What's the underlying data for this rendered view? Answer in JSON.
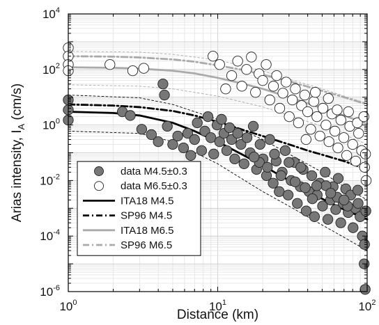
{
  "chart_data": {
    "type": "scatter",
    "x_scale": "log",
    "y_scale": "log",
    "xlim": [
      1,
      100
    ],
    "ylim": [
      1e-06,
      10000
    ],
    "xlabel": "Distance (km)",
    "ylabel": "Arias intensity, I",
    "ylabel_subscript": "A",
    "ylabel_unit": " (cm/s)",
    "grid": "on (major and minor)",
    "legend_position": "bottom-left",
    "x_ticks": [
      {
        "value": 1,
        "base": "10",
        "exp": "0"
      },
      {
        "value": 10,
        "base": "10",
        "exp": "1"
      },
      {
        "value": 100,
        "base": "10",
        "exp": "2"
      }
    ],
    "y_ticks": [
      {
        "value": 1e-06,
        "base": "10",
        "exp": "-6"
      },
      {
        "value": 0.0001,
        "base": "10",
        "exp": "-4"
      },
      {
        "value": 0.01,
        "base": "10",
        "exp": "-2"
      },
      {
        "value": 1,
        "base": "10",
        "exp": "0"
      },
      {
        "value": 100,
        "base": "10",
        "exp": "2"
      },
      {
        "value": 10000,
        "base": "10",
        "exp": "4"
      }
    ],
    "legend": [
      {
        "label": "data M4.5±0.3",
        "kind": "marker",
        "fill": "#777777",
        "stroke": "#222222"
      },
      {
        "label": "data M6.5±0.3",
        "kind": "marker",
        "fill": "#ffffff",
        "stroke": "#222222"
      },
      {
        "label": "ITA18 M4.5",
        "kind": "line",
        "color": "#000000",
        "dash": "solid"
      },
      {
        "label": "SP96 M4.5",
        "kind": "line",
        "color": "#000000",
        "dash": "dashdot"
      },
      {
        "label": "ITA18 M6.5",
        "kind": "line",
        "color": "#aaaaaa",
        "dash": "solid"
      },
      {
        "label": "SP96 M6.5",
        "kind": "line",
        "color": "#aaaaaa",
        "dash": "dashdot"
      }
    ],
    "series": [
      {
        "name": "data M4.5±0.3",
        "type": "scatter",
        "fill": "#777777",
        "stroke": "#222222",
        "points": [
          [
            1.0,
            8.0
          ],
          [
            1.0,
            3.5
          ],
          [
            1.0,
            1.5
          ],
          [
            2.3,
            3.0
          ],
          [
            2.6,
            2.2
          ],
          [
            3.1,
            0.7
          ],
          [
            3.6,
            0.45
          ],
          [
            4.0,
            0.25
          ],
          [
            4.3,
            30
          ],
          [
            4.4,
            12
          ],
          [
            4.6,
            0.9
          ],
          [
            5.0,
            0.2
          ],
          [
            5.4,
            0.4
          ],
          [
            5.9,
            0.15
          ],
          [
            6.3,
            0.5
          ],
          [
            6.6,
            0.08
          ],
          [
            7.0,
            0.3
          ],
          [
            7.3,
            1.2
          ],
          [
            7.8,
            0.12
          ],
          [
            8.2,
            0.6
          ],
          [
            8.6,
            2.0
          ],
          [
            9.0,
            0.35
          ],
          [
            9.4,
            0.09
          ],
          [
            9.9,
            1.0
          ],
          [
            10.3,
            0.25
          ],
          [
            10.6,
            1.6
          ],
          [
            11.0,
            0.5
          ],
          [
            11.5,
            0.12
          ],
          [
            12.0,
            0.8
          ],
          [
            12.4,
            0.3
          ],
          [
            13.0,
            0.06
          ],
          [
            13.6,
            0.5
          ],
          [
            14.3,
            0.2
          ],
          [
            15.0,
            0.04
          ],
          [
            15.7,
            0.35
          ],
          [
            16.5,
            0.1
          ],
          [
            17.3,
            0.9
          ],
          [
            18.2,
            0.025
          ],
          [
            19.2,
            0.2
          ],
          [
            20.1,
            0.06
          ],
          [
            21.2,
            0.015
          ],
          [
            22.3,
            0.3
          ],
          [
            23.5,
            0.008
          ],
          [
            24.6,
            0.05
          ],
          [
            25.8,
            0.004
          ],
          [
            27.0,
            0.02
          ],
          [
            28.3,
            0.12
          ],
          [
            29.6,
            0.003
          ],
          [
            31.0,
            0.01
          ],
          [
            32.6,
            0.045
          ],
          [
            34.1,
            0.0015
          ],
          [
            35.7,
            0.006
          ],
          [
            37.3,
            0.025
          ],
          [
            39.1,
            0.0008
          ],
          [
            40.8,
            0.004
          ],
          [
            42.6,
            0.015
          ],
          [
            44.4,
            0.0005
          ],
          [
            46.3,
            0.003
          ],
          [
            48.2,
            0.008
          ],
          [
            50.3,
            0.0012
          ],
          [
            52.4,
            0.02
          ],
          [
            54.6,
            0.0004
          ],
          [
            56.9,
            0.002
          ],
          [
            59.2,
            0.006
          ],
          [
            61.6,
            0.0009
          ],
          [
            64.0,
            0.012
          ],
          [
            66.6,
            0.0003
          ],
          [
            69.2,
            0.0015
          ],
          [
            71.9,
            0.005
          ],
          [
            74.7,
            0.0007
          ],
          [
            77.6,
            0.003
          ],
          [
            80.5,
            0.0002
          ],
          [
            83.5,
            0.001
          ],
          [
            86.6,
            0.0045
          ],
          [
            89.7,
            0.0005
          ],
          [
            92.9,
            0.0001
          ],
          [
            95.5,
            1e-05
          ],
          [
            97.0,
            1.2e-06
          ],
          [
            96.0,
            5e-05
          ],
          [
            98.0,
            0.0008
          ],
          [
            19.0,
            0.045
          ],
          [
            24.0,
            0.09
          ],
          [
            30.0,
            0.045
          ],
          [
            36.0,
            0.03
          ],
          [
            43.0,
            0.0022
          ],
          [
            53.0,
            0.0065
          ],
          [
            63.0,
            0.0025
          ],
          [
            74.0,
            0.0012
          ],
          [
            87.0,
            0.0015
          ],
          [
            57.0,
            0.0035
          ],
          [
            17.5,
            0.07
          ],
          [
            21.5,
            0.03
          ],
          [
            26.5,
            0.015
          ],
          [
            33.0,
            0.009
          ],
          [
            38.5,
            0.0055
          ],
          [
            46.0,
            0.0065
          ],
          [
            70.0,
            0.002
          ]
        ]
      },
      {
        "name": "data M6.5±0.3",
        "type": "scatter",
        "fill": "#ffffff",
        "stroke": "#222222",
        "points": [
          [
            1.0,
            600
          ],
          [
            1.0,
            300
          ],
          [
            1.0,
            150
          ],
          [
            1.0,
            90
          ],
          [
            1.9,
            150
          ],
          [
            2.7,
            90
          ],
          [
            3.2,
            110
          ],
          [
            9.3,
            300
          ],
          [
            10.3,
            150
          ],
          [
            11.3,
            20
          ],
          [
            12.4,
            60
          ],
          [
            13.6,
            200
          ],
          [
            14.5,
            25
          ],
          [
            15.6,
            100
          ],
          [
            16.8,
            280
          ],
          [
            17.9,
            15
          ],
          [
            18.9,
            70
          ],
          [
            20.0,
            40
          ],
          [
            21.1,
            150
          ],
          [
            22.3,
            8
          ],
          [
            23.6,
            25
          ],
          [
            24.8,
            60
          ],
          [
            26.0,
            4
          ],
          [
            27.3,
            14
          ],
          [
            28.7,
            35
          ],
          [
            30.1,
            2
          ],
          [
            31.6,
            8
          ],
          [
            33.1,
            20
          ],
          [
            34.7,
            1.2
          ],
          [
            36.4,
            5
          ],
          [
            38.2,
            12
          ],
          [
            40.0,
            3
          ],
          [
            41.9,
            0.7
          ],
          [
            44.0,
            7
          ],
          [
            46.1,
            2
          ],
          [
            48.3,
            0.4
          ],
          [
            50.6,
            4
          ],
          [
            53.0,
            1
          ],
          [
            55.5,
            0.25
          ],
          [
            58.1,
            2.5
          ],
          [
            60.8,
            0.6
          ],
          [
            63.7,
            0.15
          ],
          [
            66.7,
            1.5
          ],
          [
            69.8,
            0.35
          ],
          [
            73.0,
            0.08
          ],
          [
            76.5,
            0.9
          ],
          [
            80.0,
            0.2
          ],
          [
            83.8,
            0.05
          ],
          [
            87.7,
            0.5
          ],
          [
            91.8,
            0.12
          ],
          [
            96.1,
            0.03
          ],
          [
            98.5,
            0.01
          ],
          [
            97.5,
            0.09
          ],
          [
            55.0,
            9
          ],
          [
            63.0,
            3.5
          ],
          [
            75.0,
            3
          ],
          [
            86.0,
            1.2
          ],
          [
            45.0,
            15
          ],
          [
            39.0,
            0.3
          ],
          [
            95.0,
            2
          ]
        ]
      },
      {
        "name": "ITA18 M4.5",
        "type": "line",
        "color": "#000000",
        "dash": "solid",
        "points": [
          [
            1,
            3.0
          ],
          [
            2,
            2.7
          ],
          [
            3,
            2.2
          ],
          [
            5,
            1.2
          ],
          [
            7,
            0.6
          ],
          [
            10,
            0.25
          ],
          [
            15,
            0.08
          ],
          [
            20,
            0.035
          ],
          [
            30,
            0.01
          ],
          [
            40,
            0.004
          ],
          [
            50,
            0.0022
          ],
          [
            70,
            0.0009
          ],
          [
            100,
            0.0004
          ]
        ]
      },
      {
        "name": "SP96 M4.5",
        "type": "line",
        "color": "#000000",
        "dash": "dashdot",
        "points": [
          [
            1,
            5.5
          ],
          [
            2,
            5.0
          ],
          [
            3,
            4.4
          ],
          [
            5,
            3.2
          ],
          [
            7,
            2.2
          ],
          [
            10,
            1.3
          ],
          [
            15,
            0.65
          ],
          [
            20,
            0.4
          ],
          [
            30,
            0.2
          ],
          [
            40,
            0.12
          ],
          [
            50,
            0.085
          ],
          [
            70,
            0.05
          ],
          [
            100,
            0.025
          ]
        ]
      },
      {
        "name": "ITA18 M6.5",
        "type": "line",
        "color": "#aaaaaa",
        "dash": "solid",
        "points": [
          [
            1,
            120
          ],
          [
            2,
            115
          ],
          [
            3,
            108
          ],
          [
            5,
            90
          ],
          [
            7,
            72
          ],
          [
            10,
            50
          ],
          [
            15,
            30
          ],
          [
            20,
            20
          ],
          [
            30,
            10
          ],
          [
            40,
            6
          ],
          [
            50,
            4
          ],
          [
            70,
            2.2
          ],
          [
            100,
            1.1
          ]
        ]
      },
      {
        "name": "SP96 M6.5",
        "type": "line",
        "color": "#aaaaaa",
        "dash": "dashdot",
        "points": [
          [
            1,
            300
          ],
          [
            2,
            290
          ],
          [
            3,
            270
          ],
          [
            5,
            230
          ],
          [
            7,
            190
          ],
          [
            10,
            140
          ],
          [
            15,
            95
          ],
          [
            20,
            65
          ],
          [
            30,
            38
          ],
          [
            40,
            24
          ],
          [
            50,
            17
          ],
          [
            70,
            10
          ],
          [
            100,
            5.5
          ]
        ]
      },
      {
        "name": "",
        "type": "line",
        "color": "#000000",
        "dash": "thin-dashed",
        "points": [
          [
            1,
            12
          ],
          [
            3,
            9.5
          ],
          [
            5,
            5.5
          ],
          [
            10,
            1.6
          ],
          [
            20,
            0.3
          ],
          [
            30,
            0.09
          ],
          [
            50,
            0.02
          ],
          [
            70,
            0.006
          ],
          [
            100,
            0.002
          ]
        ]
      },
      {
        "name": "",
        "type": "line",
        "color": "#000000",
        "dash": "thin-dashed",
        "points": [
          [
            1,
            0.6
          ],
          [
            3,
            0.5
          ],
          [
            5,
            0.25
          ],
          [
            10,
            0.04
          ],
          [
            20,
            0.004
          ],
          [
            30,
            0.0012
          ],
          [
            50,
            0.00025
          ],
          [
            70,
            9e-05
          ],
          [
            100,
            3e-05
          ]
        ]
      },
      {
        "name": "",
        "type": "line",
        "color": "#aaaaaa",
        "dash": "thin-dashed",
        "points": [
          [
            1,
            450
          ],
          [
            3,
            420
          ],
          [
            5,
            350
          ],
          [
            10,
            220
          ],
          [
            20,
            90
          ],
          [
            30,
            45
          ],
          [
            50,
            20
          ],
          [
            70,
            11
          ],
          [
            100,
            6
          ]
        ]
      },
      {
        "name": "",
        "type": "line",
        "color": "#aaaaaa",
        "dash": "thin-dashed",
        "points": [
          [
            1,
            28
          ],
          [
            3,
            25
          ],
          [
            5,
            20
          ],
          [
            10,
            11
          ],
          [
            20,
            4.5
          ],
          [
            30,
            2.2
          ],
          [
            50,
            0.9
          ],
          [
            70,
            0.45
          ],
          [
            100,
            0.2
          ]
        ]
      }
    ]
  }
}
